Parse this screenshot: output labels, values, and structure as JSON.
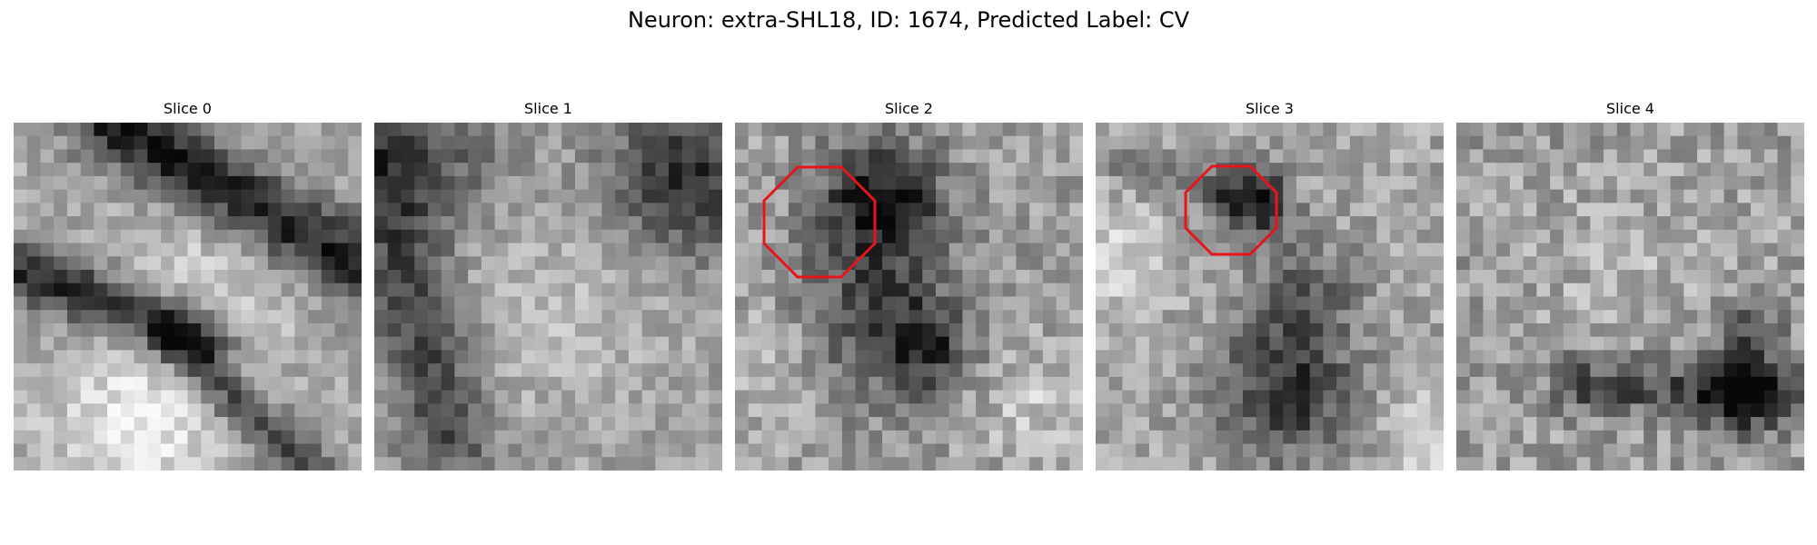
{
  "figure": {
    "title": "Neuron: extra-SHL18, ID: 1674, Predicted Label: CV"
  },
  "slices": [
    {
      "title": "Slice 0",
      "has_contour": false,
      "contour_color": "#e8141b",
      "dark_features": [
        {
          "kind": "band",
          "p0": [
            0.28,
            0.0
          ],
          "p1": [
            1.0,
            0.42
          ],
          "width": 0.16,
          "strength": 0.55
        },
        {
          "kind": "band",
          "p0": [
            0.0,
            0.42
          ],
          "p1": [
            0.55,
            0.62
          ],
          "width": 0.12,
          "strength": 0.5
        },
        {
          "kind": "band",
          "p0": [
            0.45,
            0.62
          ],
          "p1": [
            0.85,
            1.0
          ],
          "width": 0.1,
          "strength": 0.4
        }
      ],
      "light_features": [
        {
          "kind": "blob",
          "c": [
            0.35,
            0.88
          ],
          "r": 0.22,
          "strength": 0.25
        },
        {
          "kind": "blob",
          "c": [
            0.6,
            0.45
          ],
          "r": 0.2,
          "strength": 0.15
        }
      ],
      "base": 0.66,
      "noise": 0.12,
      "seed": 11
    },
    {
      "title": "Slice 1",
      "has_contour": false,
      "contour_color": "#e8141b",
      "dark_features": [
        {
          "kind": "band",
          "p0": [
            0.0,
            0.12
          ],
          "p1": [
            0.22,
            0.9
          ],
          "width": 0.18,
          "strength": 0.35
        },
        {
          "kind": "blob",
          "c": [
            0.9,
            0.15
          ],
          "r": 0.2,
          "strength": 0.45
        },
        {
          "kind": "blob",
          "c": [
            0.18,
            0.1
          ],
          "r": 0.18,
          "strength": 0.25
        }
      ],
      "light_features": [
        {
          "kind": "blob",
          "c": [
            0.55,
            0.55
          ],
          "r": 0.28,
          "strength": 0.12
        }
      ],
      "base": 0.62,
      "noise": 0.12,
      "seed": 23
    },
    {
      "title": "Slice 2",
      "has_contour": true,
      "contour_color": "#e8141b",
      "dark_features": [
        {
          "kind": "blob",
          "c": [
            0.42,
            0.22
          ],
          "r": 0.15,
          "strength": 0.55
        },
        {
          "kind": "blob",
          "c": [
            0.42,
            0.55
          ],
          "r": 0.22,
          "strength": 0.35
        },
        {
          "kind": "blob",
          "c": [
            0.55,
            0.65
          ],
          "r": 0.1,
          "strength": 0.3
        }
      ],
      "light_features": [
        {
          "kind": "blob",
          "c": [
            0.1,
            0.7
          ],
          "r": 0.16,
          "strength": 0.15
        },
        {
          "kind": "blob",
          "c": [
            0.85,
            0.8
          ],
          "r": 0.15,
          "strength": 0.15
        }
      ],
      "base": 0.62,
      "noise": 0.15,
      "seed": 37
    },
    {
      "title": "Slice 3",
      "has_contour": true,
      "contour_color": "#e8141b",
      "dark_features": [
        {
          "kind": "blob",
          "c": [
            0.55,
            0.78
          ],
          "r": 0.18,
          "strength": 0.45
        },
        {
          "kind": "blob",
          "c": [
            0.45,
            0.24
          ],
          "r": 0.1,
          "strength": 0.4
        },
        {
          "kind": "band",
          "p0": [
            0.1,
            0.12
          ],
          "p1": [
            0.5,
            0.22
          ],
          "width": 0.08,
          "strength": 0.25
        },
        {
          "kind": "blob",
          "c": [
            0.6,
            0.5
          ],
          "r": 0.15,
          "strength": 0.25
        }
      ],
      "light_features": [
        {
          "kind": "blob",
          "c": [
            0.05,
            0.4
          ],
          "r": 0.14,
          "strength": 0.2
        },
        {
          "kind": "blob",
          "c": [
            0.95,
            0.9
          ],
          "r": 0.12,
          "strength": 0.18
        }
      ],
      "base": 0.65,
      "noise": 0.14,
      "seed": 51
    },
    {
      "title": "Slice 4",
      "has_contour": false,
      "contour_color": "#e8141b",
      "dark_features": [
        {
          "kind": "band",
          "p0": [
            0.35,
            0.75
          ],
          "p1": [
            0.95,
            0.78
          ],
          "width": 0.12,
          "strength": 0.35
        },
        {
          "kind": "blob",
          "c": [
            0.82,
            0.78
          ],
          "r": 0.1,
          "strength": 0.45
        },
        {
          "kind": "blob",
          "c": [
            0.85,
            0.6
          ],
          "r": 0.08,
          "strength": 0.3
        }
      ],
      "light_features": [
        {
          "kind": "blob",
          "c": [
            0.5,
            0.45
          ],
          "r": 0.25,
          "strength": 0.08
        }
      ],
      "base": 0.62,
      "noise": 0.16,
      "seed": 67
    }
  ]
}
